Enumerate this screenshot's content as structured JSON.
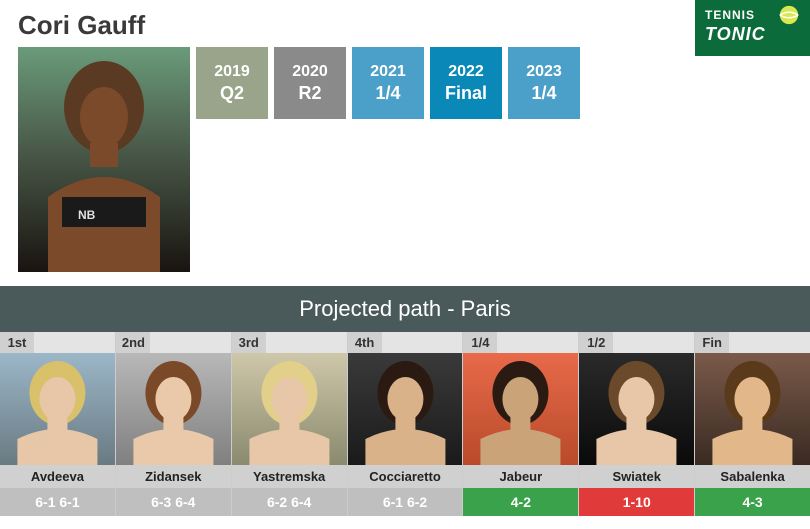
{
  "player_name": "Cori Gauff",
  "logo": {
    "line1": "TENNIS",
    "line2": "TONIC",
    "bg": "#0b6b3a"
  },
  "years": [
    {
      "year": "2019",
      "result": "Q2",
      "bg": "#9aa48a"
    },
    {
      "year": "2020",
      "result": "R2",
      "bg": "#8a8a8a"
    },
    {
      "year": "2021",
      "result": "1/4",
      "bg": "#4aa0c8"
    },
    {
      "year": "2022",
      "result": "Final",
      "bg": "#0a88b8"
    },
    {
      "year": "2023",
      "result": "1/4",
      "bg": "#4aa0c8"
    }
  ],
  "section_title": "Projected path - Paris",
  "path": [
    {
      "round": "1st",
      "name": "Avdeeva",
      "stat": "6-1 6-1",
      "stat_bg": "#bfbfbf",
      "photo_bg_top": "#9bb7c8",
      "photo_bg_bot": "#6a7a82",
      "skin": "#e8c7a8",
      "hair": "#d9c06a"
    },
    {
      "round": "2nd",
      "name": "Zidansek",
      "stat": "6-3 6-4",
      "stat_bg": "#bfbfbf",
      "photo_bg_top": "#b8b8b8",
      "photo_bg_bot": "#808080",
      "skin": "#eac9aa",
      "hair": "#7a4a28"
    },
    {
      "round": "3rd",
      "name": "Yastremska",
      "stat": "6-2 6-4",
      "stat_bg": "#bfbfbf",
      "photo_bg_top": "#cfc7aa",
      "photo_bg_bot": "#8a8a6e",
      "skin": "#e8c7a8",
      "hair": "#e2cf8a"
    },
    {
      "round": "4th",
      "name": "Cocciaretto",
      "stat": "6-1 6-2",
      "stat_bg": "#bfbfbf",
      "photo_bg_top": "#3a3a3a",
      "photo_bg_bot": "#1a1a1a",
      "skin": "#d9b28a",
      "hair": "#2a1a12"
    },
    {
      "round": "1/4",
      "name": "Jabeur",
      "stat": "4-2",
      "stat_bg": "#3aa24a",
      "photo_bg_top": "#e86a4a",
      "photo_bg_bot": "#b84a2a",
      "skin": "#caa478",
      "hair": "#2a1a12"
    },
    {
      "round": "1/2",
      "name": "Swiatek",
      "stat": "1-10",
      "stat_bg": "#e03a3a",
      "photo_bg_top": "#2a2a2a",
      "photo_bg_bot": "#0a0a0a",
      "skin": "#e8c7a8",
      "hair": "#6a4a2a"
    },
    {
      "round": "Fin",
      "name": "Sabalenka",
      "stat": "4-3",
      "stat_bg": "#3aa24a",
      "photo_bg_top": "#7a5a4a",
      "photo_bg_bot": "#3a2a22",
      "skin": "#e2b88a",
      "hair": "#5a3a1a"
    }
  ],
  "colors": {
    "section_bg": "#4a5a5a",
    "tile_bg": "#e4e4e4",
    "round_bg": "#d0d0d0",
    "name_bg": "#d0d0d0"
  }
}
